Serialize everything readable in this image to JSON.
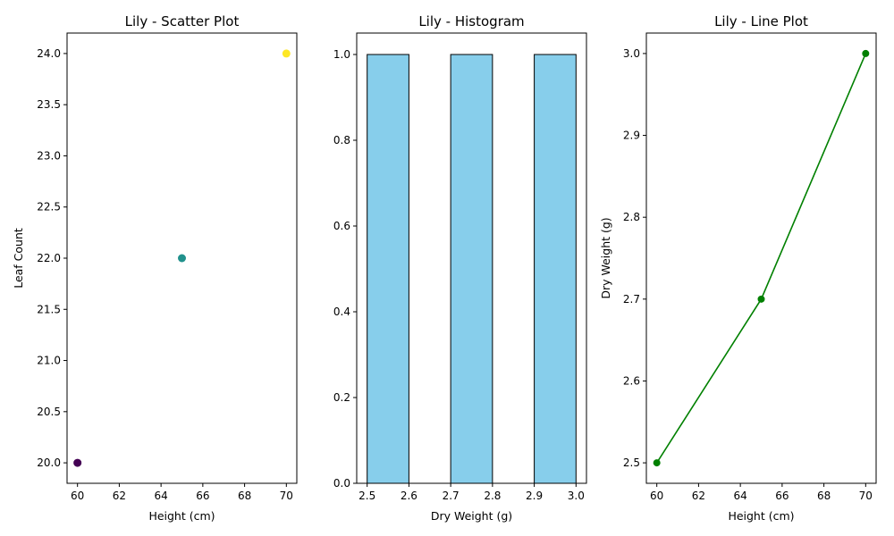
{
  "chart_data": [
    {
      "type": "scatter",
      "title": "Lily - Scatter Plot",
      "xlabel": "Height (cm)",
      "ylabel": "Leaf Count",
      "xlim": [
        59.5,
        70.5
      ],
      "ylim": [
        19.8,
        24.2
      ],
      "xticks": [
        60,
        62,
        64,
        66,
        68,
        70
      ],
      "yticks": [
        20.0,
        20.5,
        21.0,
        21.5,
        22.0,
        22.5,
        23.0,
        23.5,
        24.0
      ],
      "ytick_decimals": 1,
      "grid": false,
      "points": [
        {
          "x": 60,
          "y": 20,
          "color": "#440154"
        },
        {
          "x": 65,
          "y": 22,
          "color": "#21918c"
        },
        {
          "x": 70,
          "y": 24,
          "color": "#fde725"
        }
      ]
    },
    {
      "type": "bar",
      "subtype": "histogram",
      "title": "Lily - Histogram",
      "xlabel": "Dry Weight (g)",
      "ylabel": "",
      "xlim": [
        2.475,
        3.025
      ],
      "ylim": [
        0,
        1.05
      ],
      "xticks": [
        2.5,
        2.6,
        2.7,
        2.8,
        2.9,
        3.0
      ],
      "yticks": [
        0.0,
        0.2,
        0.4,
        0.6,
        0.8,
        1.0
      ],
      "xtick_decimals": 1,
      "ytick_decimals": 1,
      "grid": false,
      "fill_color": "#87ceeb",
      "edge_color": "#000000",
      "bins": [
        {
          "start": 2.5,
          "end": 2.6,
          "count": 1
        },
        {
          "start": 2.6,
          "end": 2.7,
          "count": 0
        },
        {
          "start": 2.7,
          "end": 2.8,
          "count": 1
        },
        {
          "start": 2.8,
          "end": 2.9,
          "count": 0
        },
        {
          "start": 2.9,
          "end": 3.0,
          "count": 1
        }
      ]
    },
    {
      "type": "line",
      "title": "Lily - Line Plot",
      "xlabel": "Height (cm)",
      "ylabel": "Dry Weight (g)",
      "xlim": [
        59.5,
        70.5
      ],
      "ylim": [
        2.475,
        3.025
      ],
      "xticks": [
        60,
        62,
        64,
        66,
        68,
        70
      ],
      "yticks": [
        2.5,
        2.6,
        2.7,
        2.8,
        2.9,
        3.0
      ],
      "ytick_decimals": 1,
      "grid": false,
      "line_color": "#008000",
      "marker": "circle",
      "x": [
        60,
        65,
        70
      ],
      "y": [
        2.5,
        2.7,
        3.0
      ]
    }
  ]
}
